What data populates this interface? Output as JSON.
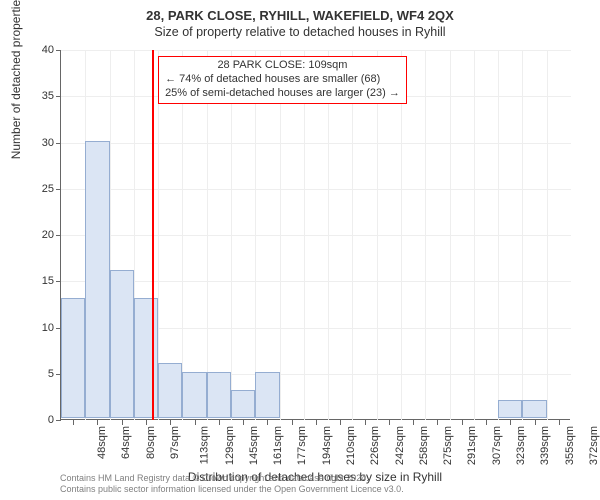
{
  "title_main": "28, PARK CLOSE, RYHILL, WAKEFIELD, WF4 2QX",
  "title_sub": "Size of property relative to detached houses in Ryhill",
  "ylabel": "Number of detached properties",
  "xlabel": "Distribution of detached houses by size in Ryhill",
  "chart": {
    "type": "histogram",
    "ylim": [
      0,
      40
    ],
    "ytick_step": 5,
    "yticks": [
      0,
      5,
      10,
      15,
      20,
      25,
      30,
      35,
      40
    ],
    "categories": [
      "48sqm",
      "64sqm",
      "80sqm",
      "97sqm",
      "113sqm",
      "129sqm",
      "145sqm",
      "161sqm",
      "177sqm",
      "194sqm",
      "210sqm",
      "226sqm",
      "242sqm",
      "258sqm",
      "275sqm",
      "291sqm",
      "307sqm",
      "323sqm",
      "339sqm",
      "355sqm",
      "372sqm"
    ],
    "values": [
      13,
      30,
      16,
      13,
      6,
      5,
      5,
      3,
      5,
      0,
      0,
      0,
      0,
      0,
      0,
      0,
      0,
      0,
      2,
      2,
      0
    ],
    "bar_fill": "#dbe5f4",
    "bar_border": "#95add1",
    "grid_color": "#eeeeee",
    "background_color": "#ffffff",
    "axis_color": "#666666",
    "bar_width": 1.0
  },
  "reference": {
    "position_category_index": 3.75,
    "line_color": "#ff0000",
    "box_border": "#ff0000",
    "box_bg": "#ffffff",
    "lines": [
      "28 PARK CLOSE: 109sqm",
      "← 74% of detached houses are smaller (68)",
      "25% of semi-detached houses are larger (23) →"
    ]
  },
  "footnote": {
    "line1": "Contains HM Land Registry data © Crown copyright and database right 2024.",
    "line2": "Contains public sector information licensed under the Open Government Licence v3.0.",
    "color": "#808080"
  },
  "typography": {
    "title_fontsize": 13,
    "label_fontsize": 12,
    "tick_fontsize": 11,
    "footnote_fontsize": 9
  }
}
